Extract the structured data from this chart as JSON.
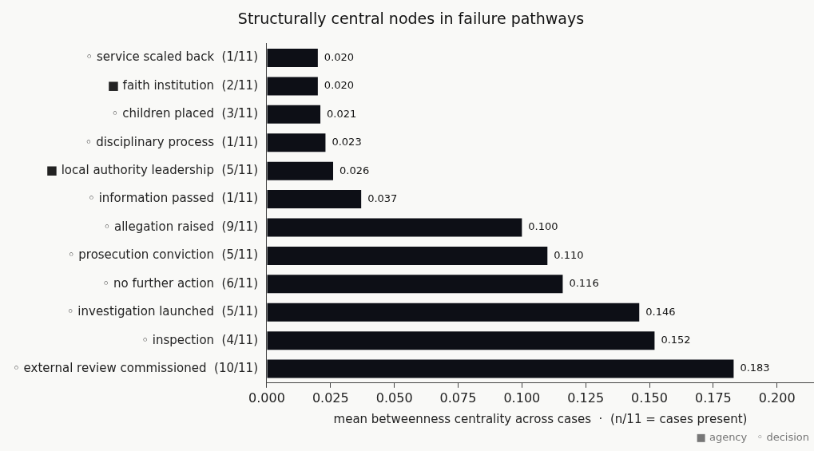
{
  "chart_data": {
    "type": "bar",
    "orientation": "horizontal",
    "title": "Structurally central nodes in failure pathways",
    "xlabel": "mean betweenness centrality across cases  ·  (n/11 = cases present)",
    "categories": [
      "◦ service scaled back  (1/11)",
      "■ faith institution  (2/11)",
      "◦ children placed  (3/11)",
      "◦ disciplinary process  (1/11)",
      "■ local authority leadership  (5/11)",
      "◦ information passed  (1/11)",
      "◦ allegation raised  (9/11)",
      "◦ prosecution conviction  (5/11)",
      "◦ no further action  (6/11)",
      "◦ investigation launched  (5/11)",
      "◦ inspection  (4/11)",
      "◦ external review commissioned  (10/11)"
    ],
    "values": [
      0.02,
      0.02,
      0.021,
      0.023,
      0.026,
      0.037,
      0.1,
      0.11,
      0.116,
      0.146,
      0.152,
      0.183
    ],
    "value_labels": [
      "0.020",
      "0.020",
      "0.021",
      "0.023",
      "0.026",
      "0.037",
      "0.100",
      "0.110",
      "0.116",
      "0.146",
      "0.152",
      "0.183"
    ],
    "color": "#0d0f16",
    "xlim": [
      0,
      0.2145
    ],
    "xticks": [
      {
        "value": 0,
        "label": "0.000"
      },
      {
        "value": 0.025,
        "label": "0.025"
      },
      {
        "value": 0.05,
        "label": "0.050"
      },
      {
        "value": 0.075,
        "label": "0.075"
      },
      {
        "value": 0.1,
        "label": "0.100"
      },
      {
        "value": 0.125,
        "label": "0.125"
      },
      {
        "value": 0.15,
        "label": "0.150"
      },
      {
        "value": 0.175,
        "label": "0.175"
      },
      {
        "value": 0.2,
        "label": "0.200"
      }
    ],
    "grid": false,
    "annotations": [
      "■ agency   ◦ decision"
    ]
  }
}
